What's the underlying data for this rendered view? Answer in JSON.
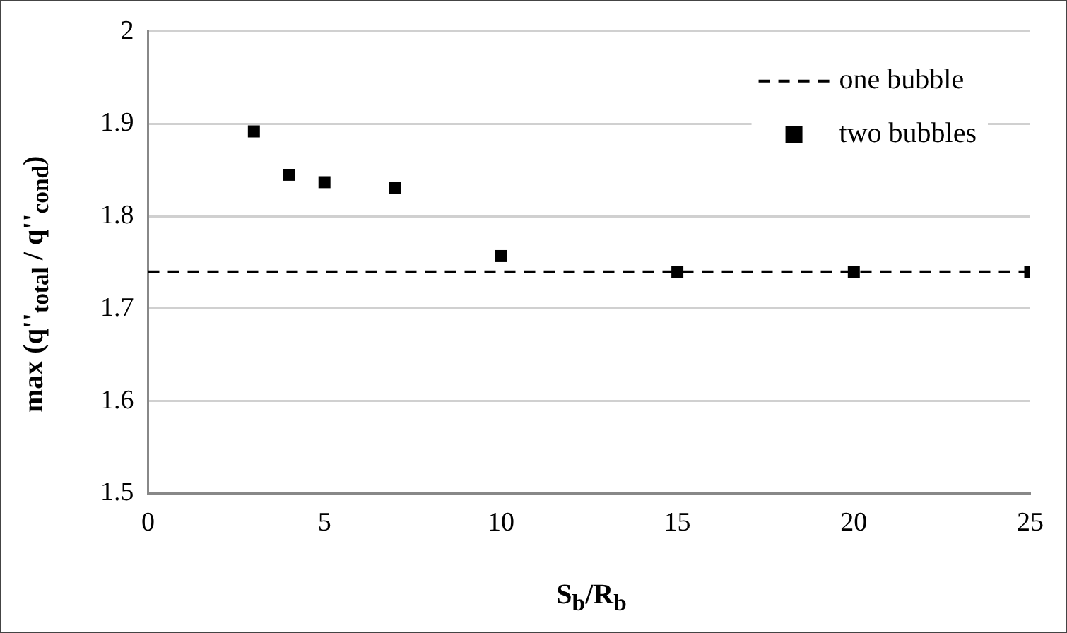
{
  "chart_data": {
    "type": "scatter",
    "xlabel": "S$_{b}$/R$_{b}$",
    "ylabel": "max (q''$_{total}$ / q''$_{cond}$)",
    "xlim": [
      0,
      25
    ],
    "xticks": [
      0,
      5,
      10,
      15,
      20,
      25
    ],
    "ylim": [
      1.5,
      2
    ],
    "yticks": [
      1.5,
      1.6,
      1.7,
      1.8,
      1.9,
      2
    ],
    "grid": "y",
    "legend": "top right",
    "series": [
      {
        "name": "one bubble",
        "type": "line",
        "line_style": "dashed",
        "marker": "none",
        "color": "#000000",
        "x": [
          0,
          25
        ],
        "values": [
          1.74,
          1.74
        ]
      },
      {
        "name": "two bubbles",
        "type": "scatter",
        "marker": "square",
        "color": "#000000",
        "x": [
          3,
          4,
          5,
          7,
          10,
          15,
          20,
          25
        ],
        "values": [
          1.892,
          1.845,
          1.837,
          1.831,
          1.757,
          1.74,
          1.74,
          1.74
        ]
      }
    ]
  }
}
